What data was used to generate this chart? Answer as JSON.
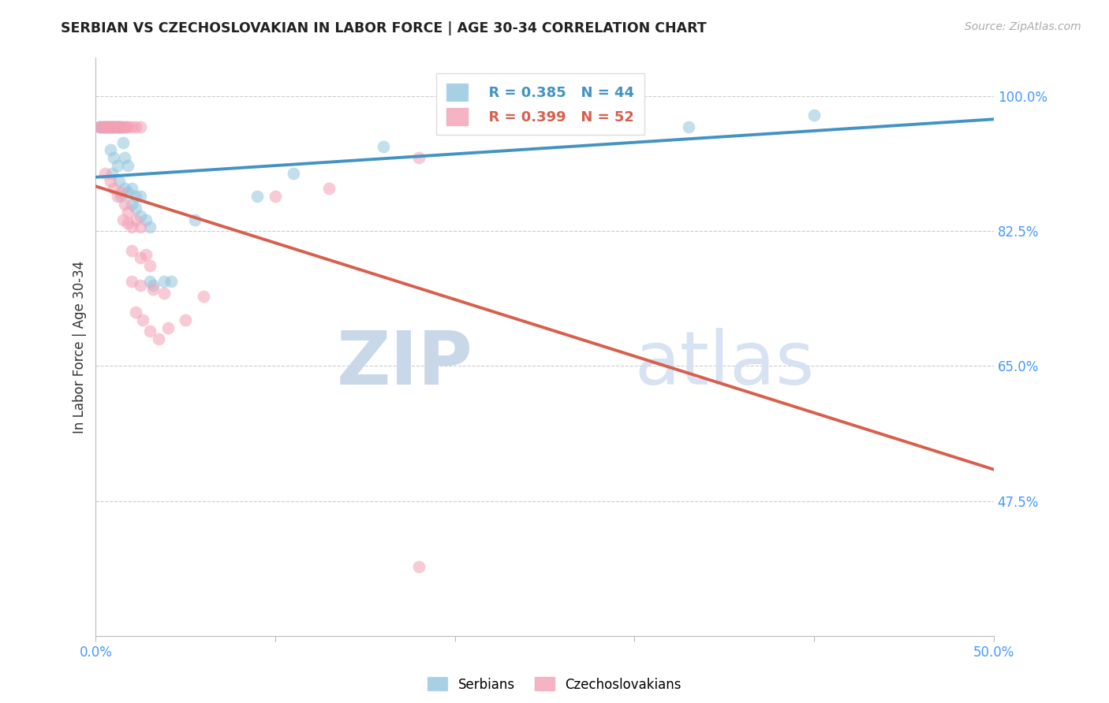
{
  "title": "SERBIAN VS CZECHOSLOVAKIAN IN LABOR FORCE | AGE 30-34 CORRELATION CHART",
  "source": "Source: ZipAtlas.com",
  "ylabel": "In Labor Force | Age 30-34",
  "xlim": [
    0.0,
    0.5
  ],
  "ylim": [
    0.3,
    1.05
  ],
  "xtick_positions": [
    0.0,
    0.1,
    0.2,
    0.3,
    0.4,
    0.5
  ],
  "xticklabels": [
    "0.0%",
    "",
    "",
    "",
    "",
    "50.0%"
  ],
  "ytick_positions": [
    1.0,
    0.825,
    0.65,
    0.475
  ],
  "ytick_labels": [
    "100.0%",
    "82.5%",
    "65.0%",
    "47.5%"
  ],
  "legend_r_serbian": "R = 0.385",
  "legend_n_serbian": "N = 44",
  "legend_r_czech": "R = 0.399",
  "legend_n_czech": "N = 52",
  "serbian_color": "#92c5de",
  "czech_color": "#f4a0b5",
  "serbian_line_color": "#4393c3",
  "czech_line_color": "#d6604d",
  "watermark_zip": "ZIP",
  "watermark_atlas": "atlas",
  "serbian_points": [
    [
      0.002,
      0.96
    ],
    [
      0.003,
      0.96
    ],
    [
      0.004,
      0.96
    ],
    [
      0.005,
      0.96
    ],
    [
      0.006,
      0.96
    ],
    [
      0.007,
      0.96
    ],
    [
      0.008,
      0.96
    ],
    [
      0.009,
      0.96
    ],
    [
      0.01,
      0.96
    ],
    [
      0.011,
      0.96
    ],
    [
      0.012,
      0.96
    ],
    [
      0.013,
      0.96
    ],
    [
      0.014,
      0.96
    ],
    [
      0.008,
      0.93
    ],
    [
      0.01,
      0.92
    ],
    [
      0.009,
      0.9
    ],
    [
      0.012,
      0.91
    ],
    [
      0.015,
      0.94
    ],
    [
      0.013,
      0.89
    ],
    [
      0.016,
      0.92
    ],
    [
      0.018,
      0.91
    ],
    [
      0.014,
      0.87
    ],
    [
      0.016,
      0.88
    ],
    [
      0.018,
      0.875
    ],
    [
      0.02,
      0.88
    ],
    [
      0.022,
      0.87
    ],
    [
      0.025,
      0.87
    ],
    [
      0.02,
      0.86
    ],
    [
      0.022,
      0.855
    ],
    [
      0.025,
      0.845
    ],
    [
      0.028,
      0.84
    ],
    [
      0.03,
      0.83
    ],
    [
      0.03,
      0.76
    ],
    [
      0.032,
      0.755
    ],
    [
      0.038,
      0.76
    ],
    [
      0.042,
      0.76
    ],
    [
      0.055,
      0.84
    ],
    [
      0.09,
      0.87
    ],
    [
      0.11,
      0.9
    ],
    [
      0.16,
      0.935
    ],
    [
      0.22,
      0.96
    ],
    [
      0.27,
      0.96
    ],
    [
      0.33,
      0.96
    ],
    [
      0.4,
      0.975
    ]
  ],
  "czech_points": [
    [
      0.002,
      0.96
    ],
    [
      0.003,
      0.96
    ],
    [
      0.004,
      0.96
    ],
    [
      0.005,
      0.96
    ],
    [
      0.006,
      0.96
    ],
    [
      0.007,
      0.96
    ],
    [
      0.008,
      0.96
    ],
    [
      0.009,
      0.96
    ],
    [
      0.01,
      0.96
    ],
    [
      0.011,
      0.96
    ],
    [
      0.012,
      0.96
    ],
    [
      0.013,
      0.96
    ],
    [
      0.014,
      0.96
    ],
    [
      0.015,
      0.96
    ],
    [
      0.016,
      0.96
    ],
    [
      0.017,
      0.96
    ],
    [
      0.018,
      0.96
    ],
    [
      0.02,
      0.96
    ],
    [
      0.022,
      0.96
    ],
    [
      0.025,
      0.96
    ],
    [
      0.005,
      0.9
    ],
    [
      0.008,
      0.89
    ],
    [
      0.01,
      0.88
    ],
    [
      0.012,
      0.87
    ],
    [
      0.014,
      0.875
    ],
    [
      0.016,
      0.86
    ],
    [
      0.018,
      0.85
    ],
    [
      0.015,
      0.84
    ],
    [
      0.018,
      0.835
    ],
    [
      0.02,
      0.83
    ],
    [
      0.022,
      0.84
    ],
    [
      0.025,
      0.83
    ],
    [
      0.02,
      0.8
    ],
    [
      0.025,
      0.79
    ],
    [
      0.028,
      0.795
    ],
    [
      0.03,
      0.78
    ],
    [
      0.02,
      0.76
    ],
    [
      0.025,
      0.755
    ],
    [
      0.032,
      0.75
    ],
    [
      0.038,
      0.745
    ],
    [
      0.022,
      0.72
    ],
    [
      0.026,
      0.71
    ],
    [
      0.03,
      0.695
    ],
    [
      0.035,
      0.685
    ],
    [
      0.04,
      0.7
    ],
    [
      0.05,
      0.71
    ],
    [
      0.06,
      0.74
    ],
    [
      0.1,
      0.87
    ],
    [
      0.13,
      0.88
    ],
    [
      0.18,
      0.92
    ],
    [
      0.23,
      0.96
    ],
    [
      0.18,
      0.39
    ]
  ]
}
